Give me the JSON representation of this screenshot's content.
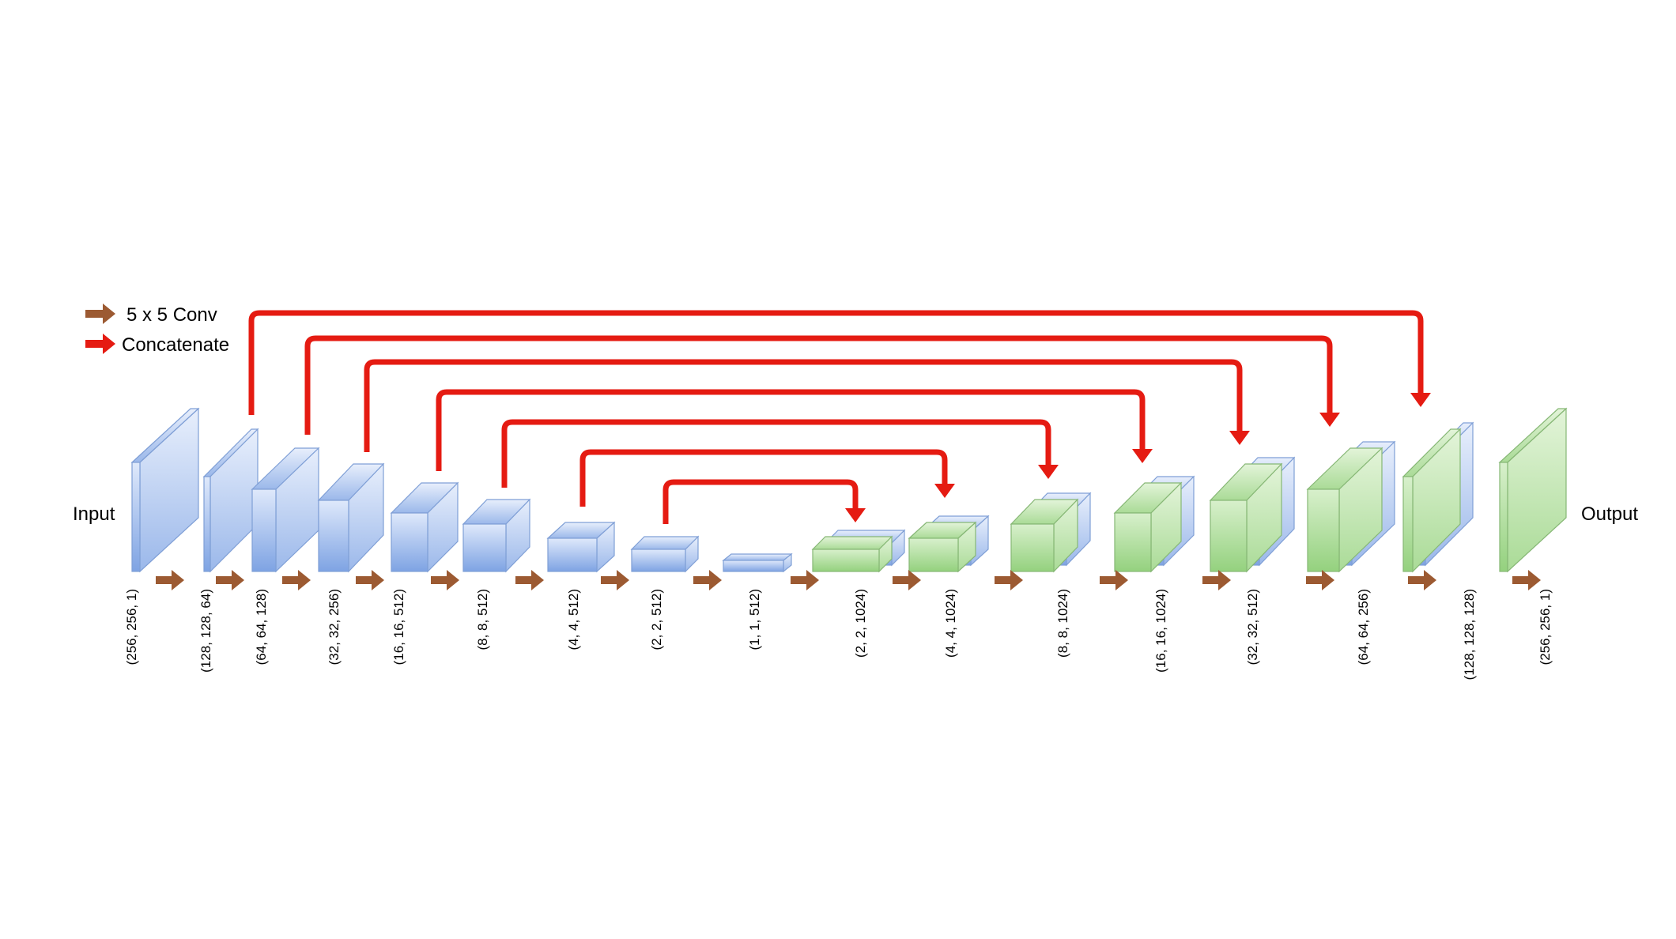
{
  "legend": [
    {
      "label": "5 x 5 Conv",
      "color": "#9c5a32"
    },
    {
      "label": "Concatenate",
      "color": "#e51b12"
    }
  ],
  "input_label": "Input",
  "output_label": "Output",
  "colors": {
    "encoder_light": "#dfe9fb",
    "encoder_dark": "#7ea3e3",
    "encoder_stroke": "#7f9fd6",
    "decoder_light": "#d8f0cc",
    "decoder_dark": "#94d17e",
    "decoder_stroke": "#86b775",
    "conv_arrow": "#9c5a32",
    "concat_arrow": "#e51b12"
  },
  "layers": [
    {
      "shape": "(256, 256, 1)",
      "kind": "encoder"
    },
    {
      "shape": "(128, 128, 64)",
      "kind": "encoder"
    },
    {
      "shape": "(64, 64, 128)",
      "kind": "encoder"
    },
    {
      "shape": "(32, 32, 256)",
      "kind": "encoder"
    },
    {
      "shape": "(16, 16, 512)",
      "kind": "encoder"
    },
    {
      "shape": "(8, 8, 512)",
      "kind": "encoder"
    },
    {
      "shape": "(4, 4, 512)",
      "kind": "encoder"
    },
    {
      "shape": "(2, 2, 512)",
      "kind": "encoder"
    },
    {
      "shape": "(1, 1, 512)",
      "kind": "encoder"
    },
    {
      "shape": "(2, 2, 1024)",
      "kind": "decoder"
    },
    {
      "shape": "(4, 4, 1024)",
      "kind": "decoder"
    },
    {
      "shape": "(8, 8, 1024)",
      "kind": "decoder"
    },
    {
      "shape": "(16, 16, 1024)",
      "kind": "decoder"
    },
    {
      "shape": "(32, 32, 512)",
      "kind": "decoder"
    },
    {
      "shape": "(64, 64, 256)",
      "kind": "decoder"
    },
    {
      "shape": "(128, 128, 128)",
      "kind": "decoder"
    },
    {
      "shape": "(256, 256, 1)",
      "kind": "decoder"
    }
  ]
}
